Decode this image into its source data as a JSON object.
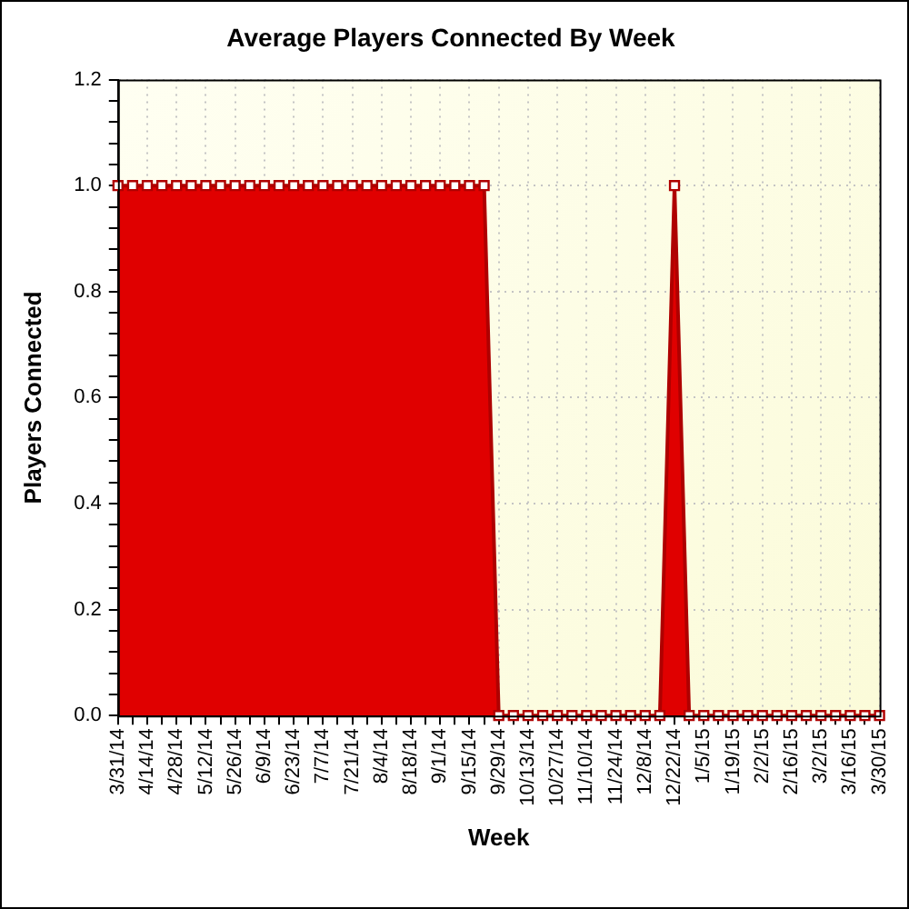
{
  "chart_data": {
    "type": "area",
    "title": "Average Players Connected By Week",
    "xlabel": "Week",
    "ylabel": "Players Connected",
    "categories": [
      "3/31/14",
      null,
      "4/14/14",
      null,
      "4/28/14",
      null,
      "5/12/14",
      null,
      "5/26/14",
      null,
      "6/9/14",
      null,
      "6/23/14",
      null,
      "7/7/14",
      null,
      "7/21/14",
      null,
      "8/4/14",
      null,
      "8/18/14",
      null,
      "9/1/14",
      null,
      "9/15/14",
      null,
      "9/29/14",
      null,
      "10/13/14",
      null,
      "10/27/14",
      null,
      "11/10/14",
      null,
      "11/24/14",
      null,
      "12/8/14",
      null,
      "12/22/14",
      null,
      "1/5/15",
      null,
      "1/19/15",
      null,
      "2/2/15",
      null,
      "2/16/15",
      null,
      "3/2/15",
      null,
      "3/16/15",
      null,
      "3/30/15"
    ],
    "series": [
      {
        "color": "#e00000",
        "values": [
          1,
          1,
          1,
          1,
          1,
          1,
          1,
          1,
          1,
          1,
          1,
          1,
          1,
          1,
          1,
          1,
          1,
          1,
          1,
          1,
          1,
          1,
          1,
          1,
          1,
          1,
          0,
          0,
          0,
          0,
          0,
          0,
          0,
          0,
          0,
          0,
          0,
          0,
          1,
          0,
          0,
          0,
          0,
          0,
          0,
          0,
          0,
          0,
          0,
          0,
          0,
          0,
          0
        ]
      }
    ],
    "ylim": [
      0,
      1.2
    ],
    "yticks": [
      {
        "value": 0,
        "label": "0.0"
      },
      {
        "value": 0.04,
        "label": null
      },
      {
        "value": 0.08,
        "label": null
      },
      {
        "value": 0.12,
        "label": null
      },
      {
        "value": 0.16,
        "label": null
      },
      {
        "value": 0.2,
        "label": "0.2"
      },
      {
        "value": 0.24,
        "label": null
      },
      {
        "value": 0.28,
        "label": null
      },
      {
        "value": 0.32,
        "label": null
      },
      {
        "value": 0.36,
        "label": null
      },
      {
        "value": 0.4,
        "label": "0.4"
      },
      {
        "value": 0.44,
        "label": null
      },
      {
        "value": 0.48,
        "label": null
      },
      {
        "value": 0.52,
        "label": null
      },
      {
        "value": 0.56,
        "label": null
      },
      {
        "value": 0.6,
        "label": "0.6"
      },
      {
        "value": 0.64,
        "label": null
      },
      {
        "value": 0.68,
        "label": null
      },
      {
        "value": 0.72,
        "label": null
      },
      {
        "value": 0.76,
        "label": null
      },
      {
        "value": 0.8,
        "label": "0.8"
      },
      {
        "value": 0.84,
        "label": null
      },
      {
        "value": 0.88,
        "label": null
      },
      {
        "value": 0.92,
        "label": null
      },
      {
        "value": 0.96,
        "label": null
      },
      {
        "value": 1,
        "label": "1.0"
      },
      {
        "value": 1.04,
        "label": null
      },
      {
        "value": 1.08,
        "label": null
      },
      {
        "value": 1.12,
        "label": null
      },
      {
        "value": 1.16,
        "label": null
      },
      {
        "value": 1.2,
        "label": "1.2"
      }
    ],
    "grid": true,
    "marker": "square",
    "line_style": "solid"
  }
}
